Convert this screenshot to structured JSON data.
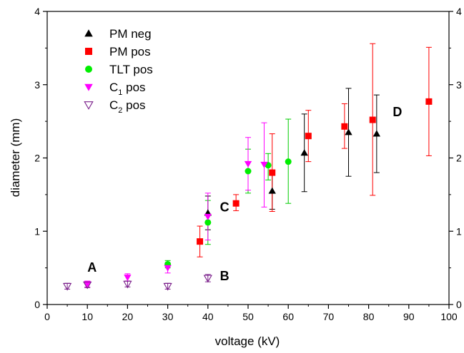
{
  "chart_data": {
    "type": "scatter",
    "title": "",
    "xlabel": "voltage (kV)",
    "ylabel": "diameter (mm)",
    "xlim": [
      0,
      100
    ],
    "ylim": [
      0,
      4
    ],
    "xticks": [
      0,
      10,
      20,
      30,
      40,
      50,
      60,
      70,
      80,
      90,
      100
    ],
    "yticks": [
      0,
      1,
      2,
      3,
      4
    ],
    "right_axis_ticks": [
      0,
      1,
      2,
      3,
      4
    ],
    "grid": false,
    "legend_position": "top-left",
    "series": [
      {
        "name": "PM neg",
        "name_main": "PM neg",
        "name_sub": "",
        "name_tail": "",
        "marker": "triangle-up",
        "filled": true,
        "color": "#000000",
        "error_color": "#000000",
        "points": [
          {
            "x": 40,
            "y": 1.25,
            "lo": 1.02,
            "hi": 1.48
          },
          {
            "x": 56,
            "y": 1.55,
            "lo": 1.3,
            "hi": 1.8
          },
          {
            "x": 64,
            "y": 2.07,
            "lo": 1.54,
            "hi": 2.6
          },
          {
            "x": 75,
            "y": 2.35,
            "lo": 1.75,
            "hi": 2.95
          },
          {
            "x": 82,
            "y": 2.33,
            "lo": 1.8,
            "hi": 2.86
          }
        ]
      },
      {
        "name": "PM pos",
        "name_main": "PM pos",
        "name_sub": "",
        "name_tail": "",
        "marker": "square",
        "filled": true,
        "color": "#ff0000",
        "error_color": "#ff0000",
        "points": [
          {
            "x": 38,
            "y": 0.86,
            "lo": 0.65,
            "hi": 1.07
          },
          {
            "x": 47,
            "y": 1.38,
            "lo": 1.28,
            "hi": 1.5
          },
          {
            "x": 56,
            "y": 1.8,
            "lo": 1.27,
            "hi": 2.33
          },
          {
            "x": 65,
            "y": 2.3,
            "lo": 1.95,
            "hi": 2.65
          },
          {
            "x": 74,
            "y": 2.43,
            "lo": 2.13,
            "hi": 2.74
          },
          {
            "x": 81,
            "y": 2.52,
            "lo": 1.49,
            "hi": 3.56
          },
          {
            "x": 95,
            "y": 2.77,
            "lo": 2.03,
            "hi": 3.51
          }
        ]
      },
      {
        "name": "TLT pos",
        "name_main": "TLT pos",
        "name_sub": "",
        "name_tail": "",
        "marker": "circle",
        "filled": true,
        "color": "#00ee00",
        "error_color": "#00cc00",
        "points": [
          {
            "x": 30,
            "y": 0.55,
            "lo": 0.5,
            "hi": 0.6
          },
          {
            "x": 40,
            "y": 1.12,
            "lo": 0.82,
            "hi": 1.42
          },
          {
            "x": 50,
            "y": 1.82,
            "lo": 1.52,
            "hi": 2.12
          },
          {
            "x": 55,
            "y": 1.9,
            "lo": 1.7,
            "hi": 2.06
          },
          {
            "x": 60,
            "y": 1.95,
            "lo": 1.38,
            "hi": 2.53
          }
        ]
      },
      {
        "name": "C1 pos",
        "name_main": "C",
        "name_sub": "1",
        "name_tail": " pos",
        "marker": "triangle-down",
        "filled": true,
        "color": "#ff00ff",
        "error_color": "#ff00ff",
        "points": [
          {
            "x": 10,
            "y": 0.28,
            "lo": 0.24,
            "hi": 0.32
          },
          {
            "x": 20,
            "y": 0.37,
            "lo": 0.32,
            "hi": 0.42
          },
          {
            "x": 30,
            "y": 0.5,
            "lo": 0.43,
            "hi": 0.57
          },
          {
            "x": 40,
            "y": 1.2,
            "lo": 0.88,
            "hi": 1.52
          },
          {
            "x": 50,
            "y": 1.92,
            "lo": 1.56,
            "hi": 2.28
          },
          {
            "x": 54,
            "y": 1.91,
            "lo": 1.33,
            "hi": 2.48
          }
        ]
      },
      {
        "name": "C2 pos",
        "name_main": "C",
        "name_sub": "2",
        "name_tail": " pos",
        "marker": "triangle-down",
        "filled": false,
        "color": "#7a1f8a",
        "error_color": "#7a1f8a",
        "points": [
          {
            "x": 5,
            "y": 0.25,
            "lo": 0.21,
            "hi": 0.29
          },
          {
            "x": 10,
            "y": 0.27,
            "lo": 0.23,
            "hi": 0.31
          },
          {
            "x": 20,
            "y": 0.28,
            "lo": 0.24,
            "hi": 0.32
          },
          {
            "x": 30,
            "y": 0.25,
            "lo": 0.21,
            "hi": 0.29
          },
          {
            "x": 40,
            "y": 0.36,
            "lo": 0.31,
            "hi": 0.41
          }
        ]
      }
    ],
    "annotations": [
      {
        "text": "A",
        "x": 10,
        "y": 0.45
      },
      {
        "text": "B",
        "x": 43,
        "y": 0.33
      },
      {
        "text": "C",
        "x": 43,
        "y": 1.27
      },
      {
        "text": "D",
        "x": 86,
        "y": 2.57
      }
    ]
  }
}
